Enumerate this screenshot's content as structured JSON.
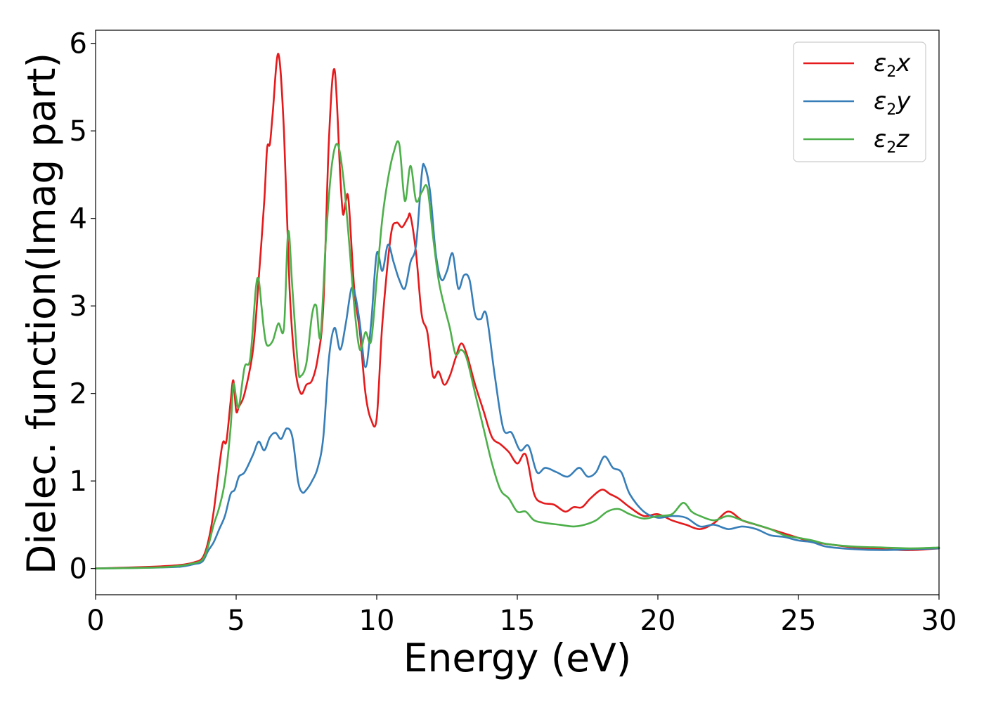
{
  "chart_data": {
    "type": "line",
    "title": "",
    "xlabel": "Energy (eV)",
    "ylabel": "Dielec. function(Imag part)",
    "xlim": [
      0,
      30
    ],
    "ylim": [
      -0.3,
      6.15
    ],
    "xticks": [
      0,
      5,
      10,
      15,
      20,
      25,
      30
    ],
    "xtick_labels": [
      "0",
      "5",
      "10",
      "15",
      "20",
      "25",
      "30"
    ],
    "yticks": [
      0,
      1,
      2,
      3,
      4,
      5,
      6
    ],
    "ytick_labels": [
      "0",
      "1",
      "2",
      "3",
      "4",
      "5",
      "6"
    ],
    "grid": false,
    "legend_position": "top-right",
    "series": [
      {
        "name": "ε2x",
        "symbol": "ε",
        "subscript": "2",
        "suffix": "x",
        "color": "#e41a1c",
        "x": [
          0,
          2,
          3,
          3.5,
          3.8,
          4.0,
          4.2,
          4.5,
          4.65,
          4.8,
          4.9,
          5.0,
          5.1,
          5.3,
          5.6,
          5.8,
          6.0,
          6.1,
          6.2,
          6.3,
          6.5,
          6.7,
          6.9,
          7.1,
          7.3,
          7.5,
          7.7,
          7.9,
          8.1,
          8.3,
          8.5,
          8.7,
          8.8,
          8.9,
          9.0,
          9.2,
          9.4,
          9.6,
          9.8,
          10.0,
          10.2,
          10.5,
          10.7,
          10.9,
          11.1,
          11.2,
          11.4,
          11.6,
          11.8,
          12.0,
          12.2,
          12.4,
          12.6,
          12.8,
          13.0,
          13.2,
          13.5,
          13.8,
          14.1,
          14.4,
          14.7,
          15.0,
          15.3,
          15.6,
          15.9,
          16.3,
          16.7,
          17.0,
          17.3,
          17.6,
          18.0,
          18.3,
          18.6,
          19.0,
          19.5,
          20.0,
          20.5,
          21.0,
          21.5,
          22.0,
          22.5,
          23.0,
          23.5,
          24.0,
          24.5,
          25.0,
          25.5,
          26.0,
          27.0,
          28.0,
          29.0,
          30.0
        ],
        "y": [
          0,
          0.02,
          0.04,
          0.07,
          0.12,
          0.3,
          0.65,
          1.4,
          1.45,
          1.9,
          2.15,
          1.8,
          1.85,
          2.0,
          2.5,
          3.3,
          4.2,
          4.8,
          4.85,
          5.2,
          5.88,
          5.0,
          3.2,
          2.3,
          2.0,
          2.1,
          2.15,
          2.4,
          3.0,
          4.9,
          5.7,
          4.5,
          4.05,
          4.2,
          4.2,
          3.2,
          2.7,
          2.0,
          1.7,
          1.72,
          2.8,
          3.8,
          3.95,
          3.9,
          4.0,
          4.03,
          3.6,
          2.9,
          2.7,
          2.2,
          2.25,
          2.1,
          2.2,
          2.4,
          2.57,
          2.45,
          2.1,
          1.8,
          1.5,
          1.42,
          1.33,
          1.2,
          1.3,
          0.85,
          0.75,
          0.73,
          0.65,
          0.7,
          0.7,
          0.8,
          0.9,
          0.85,
          0.8,
          0.7,
          0.6,
          0.62,
          0.55,
          0.5,
          0.45,
          0.52,
          0.65,
          0.55,
          0.5,
          0.45,
          0.4,
          0.35,
          0.3,
          0.28,
          0.24,
          0.22,
          0.21,
          0.23
        ]
      },
      {
        "name": "ε2y",
        "symbol": "ε",
        "subscript": "2",
        "suffix": "y",
        "color": "#377eb8",
        "x": [
          0,
          2,
          3,
          3.5,
          3.8,
          4.0,
          4.2,
          4.4,
          4.6,
          4.8,
          4.95,
          5.1,
          5.3,
          5.6,
          5.8,
          6.0,
          6.2,
          6.4,
          6.6,
          6.8,
          7.0,
          7.2,
          7.35,
          7.5,
          7.7,
          7.9,
          8.1,
          8.3,
          8.5,
          8.7,
          8.9,
          9.1,
          9.25,
          9.4,
          9.6,
          9.8,
          10.0,
          10.2,
          10.4,
          10.6,
          10.8,
          11.0,
          11.2,
          11.4,
          11.6,
          11.7,
          11.9,
          12.1,
          12.3,
          12.5,
          12.7,
          12.9,
          13.1,
          13.3,
          13.5,
          13.7,
          13.9,
          14.2,
          14.5,
          14.8,
          15.1,
          15.4,
          15.7,
          16.0,
          16.4,
          16.8,
          17.2,
          17.5,
          17.8,
          18.1,
          18.4,
          18.7,
          19.0,
          19.5,
          20.0,
          20.5,
          21.0,
          21.5,
          22.0,
          22.5,
          23.0,
          23.5,
          24.0,
          24.5,
          25.0,
          25.5,
          26.0,
          27.0,
          28.0,
          29.0,
          30.0
        ],
        "y": [
          0,
          0.01,
          0.02,
          0.05,
          0.08,
          0.2,
          0.3,
          0.45,
          0.6,
          0.85,
          0.9,
          1.05,
          1.1,
          1.3,
          1.45,
          1.35,
          1.5,
          1.55,
          1.48,
          1.6,
          1.5,
          1.0,
          0.87,
          0.9,
          1.0,
          1.15,
          1.5,
          2.4,
          2.75,
          2.5,
          2.8,
          3.2,
          3.1,
          2.8,
          2.3,
          2.8,
          3.6,
          3.4,
          3.7,
          3.5,
          3.3,
          3.2,
          3.5,
          3.7,
          4.5,
          4.6,
          4.3,
          3.6,
          3.3,
          3.4,
          3.6,
          3.2,
          3.35,
          3.3,
          2.9,
          2.85,
          2.9,
          2.2,
          1.6,
          1.55,
          1.35,
          1.4,
          1.1,
          1.15,
          1.1,
          1.05,
          1.15,
          1.05,
          1.1,
          1.28,
          1.15,
          1.1,
          0.85,
          0.65,
          0.58,
          0.6,
          0.58,
          0.48,
          0.5,
          0.45,
          0.48,
          0.45,
          0.38,
          0.36,
          0.32,
          0.3,
          0.25,
          0.22,
          0.21,
          0.22,
          0.23
        ]
      },
      {
        "name": "ε2z",
        "symbol": "ε",
        "subscript": "2",
        "suffix": "z",
        "color": "#4daf4a",
        "x": [
          0,
          2,
          3,
          3.5,
          3.8,
          4.0,
          4.2,
          4.4,
          4.6,
          4.8,
          4.9,
          5.0,
          5.1,
          5.3,
          5.5,
          5.7,
          5.8,
          5.9,
          6.0,
          6.1,
          6.3,
          6.5,
          6.7,
          6.85,
          7.0,
          7.2,
          7.3,
          7.5,
          7.7,
          7.85,
          8.0,
          8.2,
          8.4,
          8.6,
          8.8,
          9.0,
          9.2,
          9.4,
          9.6,
          9.8,
          10.0,
          10.2,
          10.4,
          10.6,
          10.8,
          11.0,
          11.2,
          11.4,
          11.6,
          11.8,
          12.0,
          12.2,
          12.4,
          12.6,
          12.8,
          13.0,
          13.2,
          13.5,
          13.8,
          14.1,
          14.4,
          14.7,
          15.0,
          15.3,
          15.6,
          16.0,
          16.5,
          17.0,
          17.4,
          17.8,
          18.2,
          18.6,
          19.0,
          19.5,
          20.0,
          20.5,
          20.9,
          21.2,
          21.5,
          22.0,
          22.5,
          23.0,
          23.5,
          24.0,
          24.5,
          25.0,
          25.5,
          26.0,
          27.0,
          28.0,
          29.0,
          30.0
        ],
        "y": [
          0,
          0.01,
          0.03,
          0.06,
          0.1,
          0.25,
          0.5,
          0.7,
          1.0,
          1.6,
          2.1,
          1.95,
          1.85,
          2.3,
          2.4,
          3.2,
          3.3,
          3.0,
          2.7,
          2.55,
          2.6,
          2.8,
          2.75,
          3.85,
          3.2,
          2.3,
          2.2,
          2.35,
          2.9,
          3.0,
          2.65,
          3.8,
          4.6,
          4.85,
          4.5,
          3.8,
          3.0,
          2.5,
          2.7,
          2.6,
          3.3,
          4.0,
          4.45,
          4.75,
          4.85,
          4.2,
          4.6,
          4.2,
          4.3,
          4.35,
          3.8,
          3.3,
          3.0,
          2.75,
          2.45,
          2.5,
          2.4,
          2.0,
          1.6,
          1.2,
          0.9,
          0.8,
          0.65,
          0.65,
          0.55,
          0.52,
          0.5,
          0.48,
          0.5,
          0.55,
          0.65,
          0.68,
          0.62,
          0.57,
          0.6,
          0.62,
          0.75,
          0.65,
          0.6,
          0.55,
          0.6,
          0.55,
          0.5,
          0.45,
          0.38,
          0.35,
          0.32,
          0.28,
          0.25,
          0.24,
          0.23,
          0.24
        ]
      }
    ]
  }
}
